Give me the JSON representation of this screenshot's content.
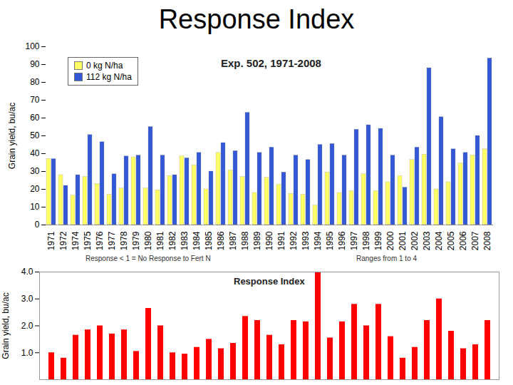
{
  "slide_title": "Response Index",
  "chart_data": [
    {
      "type": "bar",
      "title": "Exp. 502, 1971-2008",
      "y_label": "Grain yield, bu/ac",
      "categories": [
        "1971",
        "1972",
        "1974",
        "1975",
        "1976",
        "1977",
        "1978",
        "1979",
        "1980",
        "1981",
        "1982",
        "1983",
        "1984",
        "1985",
        "1986",
        "1987",
        "1988",
        "1989",
        "1990",
        "1991",
        "1992",
        "1993",
        "1994",
        "1995",
        "1996",
        "1997",
        "1998",
        "1999",
        "2000",
        "2001",
        "2002",
        "2003",
        "2004",
        "2005",
        "2006",
        "2007",
        "2008"
      ],
      "series": [
        {
          "name": "0 kg N/ha",
          "color": "#ffff66",
          "values": [
            37,
            28,
            16.5,
            27,
            23,
            17,
            20.5,
            38,
            20.5,
            19.5,
            27.5,
            38.5,
            33.5,
            20,
            40.5,
            30.5,
            27,
            18,
            26.5,
            22.5,
            17.5,
            17,
            11,
            29.5,
            18,
            19,
            28.5,
            19,
            24,
            27.5,
            36.5,
            39.5,
            20,
            24,
            34.5,
            39,
            42.5
          ]
        },
        {
          "name": "112 kg N/ha",
          "color": "#3358d6",
          "values": [
            37,
            22,
            28,
            50.5,
            46.5,
            28.5,
            38.5,
            39,
            55,
            39,
            28,
            37.5,
            40.5,
            30,
            46,
            41.5,
            63,
            40.5,
            43.5,
            29.5,
            39,
            36.5,
            45,
            45.5,
            39,
            53.5,
            56,
            54,
            39,
            21,
            43.5,
            88,
            60.5,
            42.5,
            40.5,
            50,
            93.5
          ]
        }
      ],
      "ylim": [
        0,
        100
      ],
      "yticks": [
        0,
        10,
        20,
        30,
        40,
        50,
        60,
        70,
        80,
        90,
        100
      ],
      "legend": "top-left",
      "annotations": [
        "Response < 1 = No Response to Fert N",
        "Ranges from 1 to 4"
      ]
    },
    {
      "type": "bar",
      "title": "Response Index",
      "y_label": "Grain yield, bu/ac",
      "categories": [
        "1971",
        "1972",
        "1974",
        "1975",
        "1976",
        "1977",
        "1978",
        "1979",
        "1980",
        "1981",
        "1982",
        "1983",
        "1984",
        "1985",
        "1986",
        "1987",
        "1988",
        "1989",
        "1990",
        "1991",
        "1992",
        "1993",
        "1994",
        "1995",
        "1996",
        "1997",
        "1998",
        "1999",
        "2000",
        "2001",
        "2002",
        "2003",
        "2004",
        "2005",
        "2006",
        "2007",
        "2008"
      ],
      "values": [
        1.0,
        0.8,
        1.65,
        1.85,
        2.0,
        1.7,
        1.85,
        1.05,
        2.65,
        2.0,
        1.0,
        0.95,
        1.2,
        1.5,
        1.15,
        1.35,
        2.35,
        2.2,
        1.65,
        1.3,
        2.2,
        2.15,
        4.0,
        1.55,
        2.15,
        2.8,
        2.0,
        2.8,
        1.6,
        0.8,
        1.2,
        2.2,
        3.0,
        1.8,
        1.15,
        1.3,
        2.2
      ],
      "color": "#ff0000",
      "ylim": [
        0,
        4
      ],
      "yticks": [
        1,
        2,
        3,
        4
      ],
      "tick_labels": "y"
    }
  ]
}
